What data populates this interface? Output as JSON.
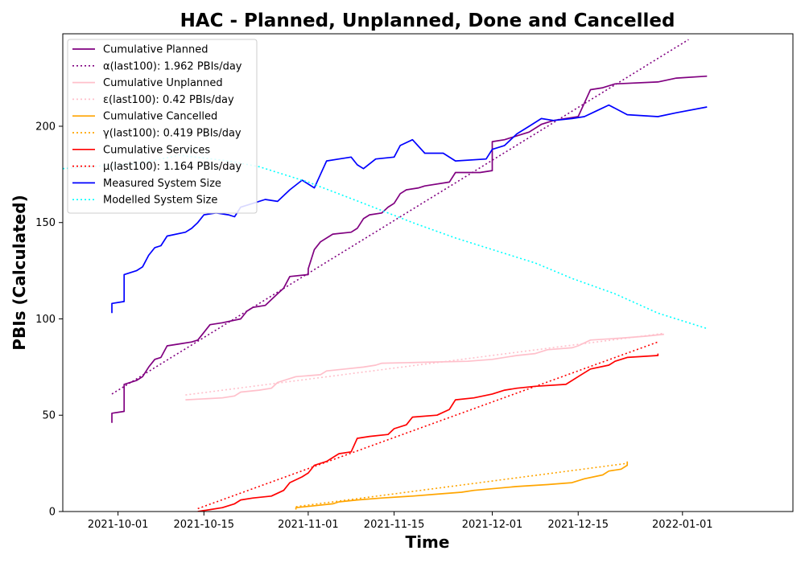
{
  "chart_data": {
    "type": "line",
    "title": "HAC - Planned, Unplanned, Done  and Cancelled",
    "xlabel": "Time",
    "ylabel": "PBIs (Calculated)",
    "xlim": [
      "2021-09-22",
      "2022-01-19"
    ],
    "ylim": [
      0,
      248
    ],
    "x_ticks": [
      "2021-10-01",
      "2021-10-15",
      "2021-11-01",
      "2021-11-15",
      "2021-12-01",
      "2021-12-15",
      "2022-01-01"
    ],
    "y_ticks": [
      0,
      50,
      100,
      150,
      200
    ],
    "grid": false,
    "legend": "upper-left",
    "series": [
      {
        "name": "Cumulative Planned",
        "color": "#800080",
        "style": "solid",
        "points": [
          [
            "2021-09-30",
            46
          ],
          [
            "2021-09-30",
            51
          ],
          [
            "2021-10-02",
            52
          ],
          [
            "2021-10-02",
            66
          ],
          [
            "2021-10-04",
            68
          ],
          [
            "2021-10-05",
            70
          ],
          [
            "2021-10-06",
            75
          ],
          [
            "2021-10-07",
            79
          ],
          [
            "2021-10-08",
            80
          ],
          [
            "2021-10-09",
            86
          ],
          [
            "2021-10-11",
            87
          ],
          [
            "2021-10-13",
            88
          ],
          [
            "2021-10-14",
            89
          ],
          [
            "2021-10-15",
            93
          ],
          [
            "2021-10-16",
            97
          ],
          [
            "2021-10-18",
            98
          ],
          [
            "2021-10-21",
            100
          ],
          [
            "2021-10-22",
            104
          ],
          [
            "2021-10-23",
            106
          ],
          [
            "2021-10-25",
            107
          ],
          [
            "2021-10-26",
            110
          ],
          [
            "2021-10-27",
            113
          ],
          [
            "2021-10-28",
            116
          ],
          [
            "2021-10-29",
            122
          ],
          [
            "2021-11-01",
            123
          ],
          [
            "2021-11-01",
            126
          ],
          [
            "2021-11-02",
            136
          ],
          [
            "2021-11-03",
            140
          ],
          [
            "2021-11-05",
            144
          ],
          [
            "2021-11-08",
            145
          ],
          [
            "2021-11-09",
            147
          ],
          [
            "2021-11-10",
            152
          ],
          [
            "2021-11-11",
            154
          ],
          [
            "2021-11-13",
            155
          ],
          [
            "2021-11-14",
            158
          ],
          [
            "2021-11-15",
            160
          ],
          [
            "2021-11-16",
            165
          ],
          [
            "2021-11-17",
            167
          ],
          [
            "2021-11-19",
            168
          ],
          [
            "2021-11-20",
            169
          ],
          [
            "2021-11-24",
            171
          ],
          [
            "2021-11-25",
            176
          ],
          [
            "2021-11-29",
            176
          ],
          [
            "2021-12-01",
            177
          ],
          [
            "2021-12-01",
            192
          ],
          [
            "2021-12-03",
            193
          ],
          [
            "2021-12-05",
            195
          ],
          [
            "2021-12-07",
            197
          ],
          [
            "2021-12-09",
            201
          ],
          [
            "2021-12-11",
            203
          ],
          [
            "2021-12-13",
            204
          ],
          [
            "2021-12-15",
            205
          ],
          [
            "2021-12-16",
            212
          ],
          [
            "2021-12-17",
            219
          ],
          [
            "2021-12-19",
            220
          ],
          [
            "2021-12-21",
            222
          ],
          [
            "2021-12-28",
            223
          ],
          [
            "2021-12-31",
            225
          ],
          [
            "2022-01-05",
            226
          ]
        ]
      },
      {
        "name": "α(last100): 1.962 PBIs/day",
        "color": "#800080",
        "style": "dotted",
        "points": [
          [
            "2021-09-30",
            61
          ],
          [
            "2022-01-02",
            245
          ]
        ]
      },
      {
        "name": "Cumulative Unplanned",
        "color": "#ffc0cb",
        "style": "solid",
        "points": [
          [
            "2021-10-12",
            58
          ],
          [
            "2021-10-18",
            59
          ],
          [
            "2021-10-20",
            60
          ],
          [
            "2021-10-21",
            62
          ],
          [
            "2021-10-24",
            63
          ],
          [
            "2021-10-26",
            64
          ],
          [
            "2021-10-27",
            67
          ],
          [
            "2021-10-29",
            69
          ],
          [
            "2021-10-30",
            70
          ],
          [
            "2021-11-01",
            70.5
          ],
          [
            "2021-11-03",
            71
          ],
          [
            "2021-11-04",
            73
          ],
          [
            "2021-11-07",
            74
          ],
          [
            "2021-11-10",
            75
          ],
          [
            "2021-11-12",
            76
          ],
          [
            "2021-11-13",
            77
          ],
          [
            "2021-11-20",
            77.5
          ],
          [
            "2021-11-27",
            78
          ],
          [
            "2021-12-01",
            79
          ],
          [
            "2021-12-05",
            81
          ],
          [
            "2021-12-08",
            82
          ],
          [
            "2021-12-10",
            84
          ],
          [
            "2021-12-14",
            85
          ],
          [
            "2021-12-15",
            86
          ],
          [
            "2021-12-17",
            89
          ],
          [
            "2021-12-22",
            90
          ],
          [
            "2021-12-26",
            91
          ],
          [
            "2021-12-29",
            92
          ]
        ]
      },
      {
        "name": "ε(last100): 0.42 PBIs/day",
        "color": "#ffc0cb",
        "style": "dotted",
        "points": [
          [
            "2021-10-12",
            60.5
          ],
          [
            "2021-12-29",
            92.5
          ]
        ]
      },
      {
        "name": "Cumulative Cancelled",
        "color": "#ffa500",
        "style": "solid",
        "points": [
          [
            "2021-10-30",
            1
          ],
          [
            "2021-10-30",
            2
          ],
          [
            "2021-11-02",
            3
          ],
          [
            "2021-11-05",
            4
          ],
          [
            "2021-11-06",
            5
          ],
          [
            "2021-11-09",
            6
          ],
          [
            "2021-11-13",
            7
          ],
          [
            "2021-11-18",
            8
          ],
          [
            "2021-11-22",
            9
          ],
          [
            "2021-11-26",
            10
          ],
          [
            "2021-11-28",
            11
          ],
          [
            "2021-12-05",
            13
          ],
          [
            "2021-12-10",
            14
          ],
          [
            "2021-12-14",
            15
          ],
          [
            "2021-12-16",
            17
          ],
          [
            "2021-12-19",
            19
          ],
          [
            "2021-12-20",
            21
          ],
          [
            "2021-12-22",
            22
          ],
          [
            "2021-12-23",
            24
          ],
          [
            "2021-12-23",
            26
          ]
        ]
      },
      {
        "name": "γ(last100): 0.419 PBIs/day",
        "color": "#ffa500",
        "style": "dotted",
        "points": [
          [
            "2021-10-30",
            2.5
          ],
          [
            "2021-12-23",
            25
          ]
        ]
      },
      {
        "name": "Cumulative Services",
        "color": "#ff0000",
        "style": "solid",
        "points": [
          [
            "2021-10-14",
            0
          ],
          [
            "2021-10-16",
            1
          ],
          [
            "2021-10-18",
            2
          ],
          [
            "2021-10-20",
            4
          ],
          [
            "2021-10-21",
            6
          ],
          [
            "2021-10-23",
            7
          ],
          [
            "2021-10-26",
            8
          ],
          [
            "2021-10-28",
            11
          ],
          [
            "2021-10-29",
            15
          ],
          [
            "2021-10-31",
            18
          ],
          [
            "2021-11-01",
            20
          ],
          [
            "2021-11-02",
            24
          ],
          [
            "2021-11-04",
            26
          ],
          [
            "2021-11-05",
            28
          ],
          [
            "2021-11-06",
            30
          ],
          [
            "2021-11-08",
            31
          ],
          [
            "2021-11-09",
            38
          ],
          [
            "2021-11-11",
            39
          ],
          [
            "2021-11-14",
            40
          ],
          [
            "2021-11-15",
            43
          ],
          [
            "2021-11-17",
            45
          ],
          [
            "2021-11-18",
            49
          ],
          [
            "2021-11-22",
            50
          ],
          [
            "2021-11-24",
            53
          ],
          [
            "2021-11-25",
            58
          ],
          [
            "2021-11-28",
            59
          ],
          [
            "2021-12-01",
            61
          ],
          [
            "2021-12-03",
            63
          ],
          [
            "2021-12-05",
            64
          ],
          [
            "2021-12-08",
            65
          ],
          [
            "2021-12-13",
            66
          ],
          [
            "2021-12-15",
            70
          ],
          [
            "2021-12-17",
            74
          ],
          [
            "2021-12-20",
            76
          ],
          [
            "2021-12-21",
            78
          ],
          [
            "2021-12-23",
            80
          ],
          [
            "2021-12-28",
            81
          ],
          [
            "2021-12-28",
            82
          ]
        ]
      },
      {
        "name": "μ(last100): 1.164 PBIs/day",
        "color": "#ff0000",
        "style": "dotted",
        "points": [
          [
            "2021-10-14",
            1.5
          ],
          [
            "2021-12-28",
            88
          ]
        ]
      },
      {
        "name": "Measured System Size",
        "color": "#0000ff",
        "style": "solid",
        "points": [
          [
            "2021-09-30",
            103
          ],
          [
            "2021-09-30",
            108
          ],
          [
            "2021-10-02",
            109
          ],
          [
            "2021-10-02",
            123
          ],
          [
            "2021-10-04",
            125
          ],
          [
            "2021-10-05",
            127
          ],
          [
            "2021-10-06",
            133
          ],
          [
            "2021-10-07",
            137
          ],
          [
            "2021-10-08",
            138
          ],
          [
            "2021-10-09",
            143
          ],
          [
            "2021-10-12",
            145
          ],
          [
            "2021-10-13",
            147
          ],
          [
            "2021-10-14",
            150
          ],
          [
            "2021-10-15",
            154
          ],
          [
            "2021-10-17",
            155
          ],
          [
            "2021-10-19",
            154
          ],
          [
            "2021-10-20",
            153
          ],
          [
            "2021-10-21",
            158
          ],
          [
            "2021-10-23",
            160
          ],
          [
            "2021-10-25",
            162
          ],
          [
            "2021-10-27",
            161
          ],
          [
            "2021-10-29",
            167
          ],
          [
            "2021-10-31",
            172
          ],
          [
            "2021-11-02",
            168
          ],
          [
            "2021-11-03",
            175
          ],
          [
            "2021-11-04",
            182
          ],
          [
            "2021-11-06",
            183
          ],
          [
            "2021-11-08",
            184
          ],
          [
            "2021-11-09",
            180
          ],
          [
            "2021-11-10",
            178
          ],
          [
            "2021-11-12",
            183
          ],
          [
            "2021-11-15",
            184
          ],
          [
            "2021-11-16",
            190
          ],
          [
            "2021-11-18",
            193
          ],
          [
            "2021-11-20",
            186
          ],
          [
            "2021-11-23",
            186
          ],
          [
            "2021-11-25",
            182
          ],
          [
            "2021-11-30",
            183
          ],
          [
            "2021-12-01",
            188
          ],
          [
            "2021-12-03",
            190
          ],
          [
            "2021-12-05",
            196
          ],
          [
            "2021-12-07",
            200
          ],
          [
            "2021-12-09",
            204
          ],
          [
            "2021-12-11",
            203
          ],
          [
            "2021-12-14",
            204
          ],
          [
            "2021-12-16",
            205
          ],
          [
            "2021-12-18",
            208
          ],
          [
            "2021-12-20",
            211
          ],
          [
            "2021-12-23",
            206
          ],
          [
            "2021-12-28",
            205
          ],
          [
            "2021-12-31",
            207
          ],
          [
            "2022-01-05",
            210
          ]
        ]
      },
      {
        "name": "Modelled System Size",
        "color": "#00ffff",
        "style": "dotted",
        "points": [
          [
            "2021-09-22",
            178
          ],
          [
            "2021-10-05",
            181
          ],
          [
            "2021-10-11",
            185
          ],
          [
            "2021-10-19",
            182
          ],
          [
            "2021-10-24",
            179
          ],
          [
            "2021-11-01",
            171
          ],
          [
            "2021-11-10",
            160
          ],
          [
            "2021-11-18",
            150
          ],
          [
            "2021-11-25",
            142
          ],
          [
            "2021-12-01",
            136
          ],
          [
            "2021-12-08",
            129
          ],
          [
            "2021-12-14",
            121
          ],
          [
            "2021-12-21",
            113
          ],
          [
            "2021-12-28",
            103
          ],
          [
            "2022-01-05",
            95
          ]
        ]
      }
    ]
  }
}
